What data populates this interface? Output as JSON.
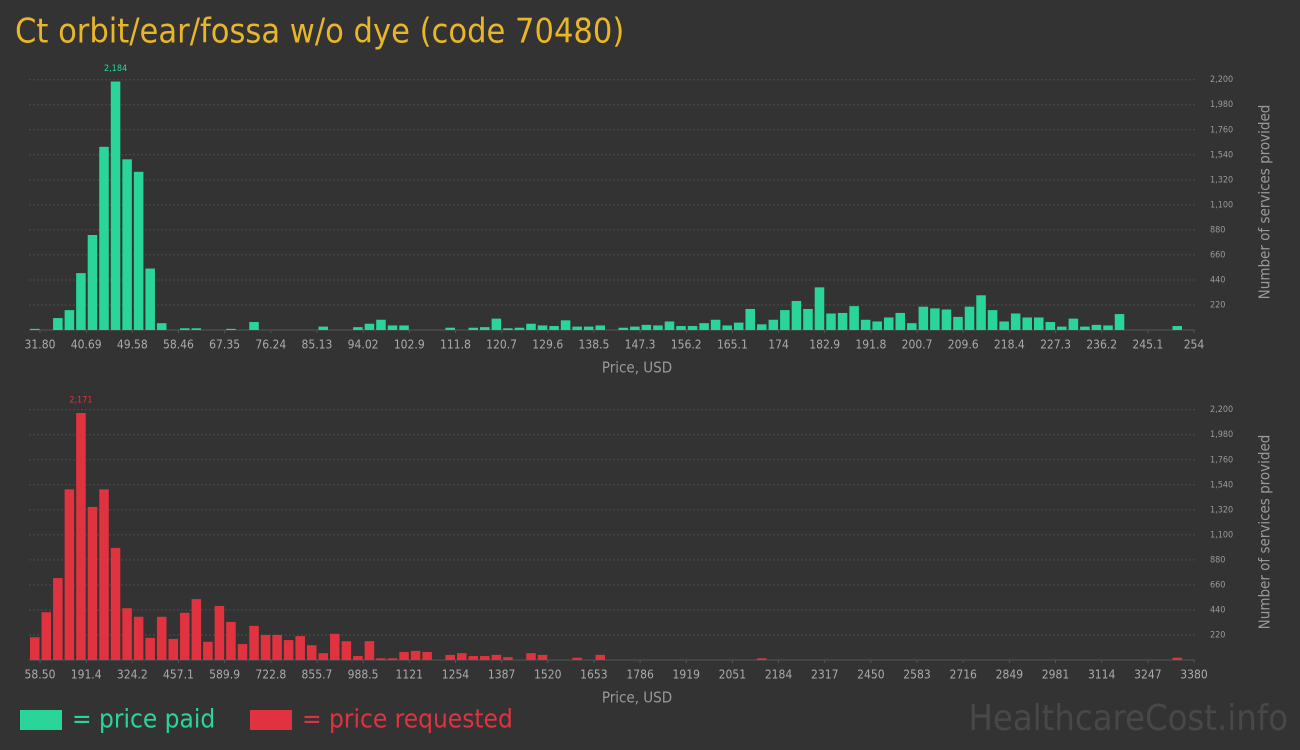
{
  "title": "Ct orbit/ear/fossa w/o dye (code 70480)",
  "watermark": "HealthcareCost.info",
  "legend": [
    {
      "label": "= price paid",
      "color": "#2ad59a"
    },
    {
      "label": "= price requested",
      "color": "#e0323f"
    }
  ],
  "chart_data": [
    {
      "type": "histogram",
      "color": "#2ad59a",
      "xlabel": "Price, USD",
      "ylabel": "Number of services provided",
      "grid": true,
      "ylim": [
        0,
        2250
      ],
      "yticks": [
        220,
        440,
        660,
        880,
        {
          "value": 1100,
          "label": "1,100"
        },
        {
          "value": 1320,
          "label": "1,320"
        },
        {
          "value": 1540,
          "label": "1,540"
        },
        {
          "value": 1760,
          "label": "1,760"
        },
        {
          "value": 1980,
          "label": "1,980"
        },
        {
          "value": 2200,
          "label": "2,200"
        }
      ],
      "bins": [
        31.8,
        34.022,
        36.244,
        38.466,
        40.688,
        42.91,
        45.132,
        47.354,
        49.576,
        51.798,
        54.02,
        56.242,
        58.464,
        60.686,
        62.908,
        65.13,
        67.352,
        69.574,
        71.796,
        74.018,
        76.24,
        78.462,
        80.684,
        82.906,
        85.128,
        87.35,
        89.572,
        91.794,
        94.016,
        96.238,
        98.46,
        100.682,
        102.904,
        105.126,
        107.348,
        109.57,
        111.792,
        114.014,
        116.236,
        118.458,
        120.68,
        122.902,
        125.124,
        127.346,
        129.568,
        131.79,
        134.012,
        136.234,
        138.456,
        140.678,
        142.9,
        145.122,
        147.344,
        149.566,
        151.788,
        154.01,
        156.232,
        158.454,
        160.676,
        162.898,
        165.12,
        167.342,
        169.564,
        171.786,
        174.008,
        176.23,
        178.452,
        180.674,
        182.896,
        185.118,
        187.34,
        189.562,
        191.784,
        194.006,
        196.228,
        198.45,
        200.672,
        202.894,
        205.116,
        207.338,
        209.56,
        211.782,
        214.004,
        216.226,
        218.448,
        220.67,
        222.892,
        225.114,
        227.336,
        229.558,
        231.78,
        234.002,
        236.224,
        238.446,
        240.668,
        242.89,
        245.112,
        247.334,
        249.556,
        251.778,
        254
      ],
      "counts": [
        10,
        0,
        105,
        175,
        500,
        835,
        1610,
        2184,
        1500,
        1390,
        540,
        60,
        0,
        15,
        15,
        0,
        0,
        10,
        0,
        70,
        0,
        0,
        0,
        0,
        0,
        30,
        0,
        0,
        25,
        55,
        90,
        40,
        40,
        0,
        0,
        0,
        20,
        0,
        20,
        25,
        100,
        15,
        20,
        55,
        40,
        35,
        85,
        30,
        30,
        40,
        0,
        20,
        30,
        45,
        40,
        75,
        35,
        35,
        60,
        90,
        40,
        65,
        185,
        50,
        90,
        175,
        255,
        185,
        375,
        145,
        150,
        210,
        90,
        75,
        110,
        150,
        60,
        205,
        190,
        180,
        115,
        205,
        305,
        175,
        75,
        145,
        110,
        110,
        70,
        30,
        100,
        30,
        45,
        40,
        140,
        0,
        0,
        0,
        0,
        35
      ],
      "value_labels": [
        null,
        null,
        null,
        null,
        null,
        null,
        null,
        "2,184",
        null,
        null,
        null,
        null,
        null,
        null,
        null,
        null,
        null,
        null,
        null,
        null,
        null,
        null,
        null,
        null,
        null,
        null,
        null,
        null,
        null,
        null,
        null,
        null,
        null,
        null,
        null,
        null,
        null,
        null,
        null,
        null,
        null,
        null,
        null,
        null,
        null,
        null,
        null,
        null,
        null,
        null,
        null,
        null,
        null,
        null,
        null,
        null,
        null,
        null,
        null,
        null,
        null,
        null,
        null,
        null,
        null,
        null,
        null,
        null,
        null,
        null,
        null,
        null,
        null,
        null,
        null,
        null,
        null,
        null,
        null,
        null,
        null,
        null,
        null,
        null,
        null,
        null,
        null,
        null,
        null,
        null,
        null,
        null,
        null,
        null,
        null,
        null,
        null,
        null,
        null,
        null
      ],
      "xticks": [
        {
          "value": 31.8,
          "label": "31.80"
        },
        {
          "value": 40.688,
          "label": "40.69"
        },
        {
          "value": 49.576,
          "label": "49.58"
        },
        {
          "value": 58.464,
          "label": "58.46"
        },
        {
          "value": 67.352,
          "label": "67.35"
        },
        {
          "value": 76.24,
          "label": "76.24"
        },
        {
          "value": 85.128,
          "label": "85.13"
        },
        {
          "value": 94.016,
          "label": "94.02"
        },
        {
          "value": 102.904,
          "label": "102.9"
        },
        {
          "value": 111.792,
          "label": "111.8"
        },
        {
          "value": 120.68,
          "label": "120.7"
        },
        {
          "value": 129.568,
          "label": "129.6"
        },
        {
          "value": 138.456,
          "label": "138.5"
        },
        {
          "value": 147.344,
          "label": "147.3"
        },
        {
          "value": 156.232,
          "label": "156.2"
        },
        {
          "value": 165.12,
          "label": "165.1"
        },
        {
          "value": 174.008,
          "label": "174"
        },
        {
          "value": 182.896,
          "label": "182.9"
        },
        {
          "value": 191.784,
          "label": "191.8"
        },
        {
          "value": 200.672,
          "label": "200.7"
        },
        {
          "value": 209.56,
          "label": "209.6"
        },
        {
          "value": 218.448,
          "label": "218.4"
        },
        {
          "value": 227.336,
          "label": "227.3"
        },
        {
          "value": 236.224,
          "label": "236.2"
        },
        {
          "value": 245.112,
          "label": "245.1"
        },
        {
          "value": 254,
          "label": "254"
        }
      ]
    },
    {
      "type": "histogram",
      "color": "#e0323f",
      "xlabel": "Price, USD",
      "ylabel": "Number of services provided",
      "grid": true,
      "ylim": [
        0,
        2250
      ],
      "yticks": [
        220,
        440,
        660,
        880,
        {
          "value": 1100,
          "label": "1,100"
        },
        {
          "value": 1320,
          "label": "1,320"
        },
        {
          "value": 1540,
          "label": "1,540"
        },
        {
          "value": 1760,
          "label": "1,760"
        },
        {
          "value": 1980,
          "label": "1,980"
        },
        {
          "value": 2200,
          "label": "2,200"
        }
      ],
      "bins": [
        58.5,
        91.715,
        124.93,
        158.145,
        191.36,
        224.575,
        257.79,
        291.005,
        324.22,
        357.435,
        390.65,
        423.865,
        457.08,
        490.295,
        523.51,
        556.725,
        589.94,
        623.155,
        656.37,
        689.585,
        722.8,
        756.015,
        789.23,
        822.445,
        855.66,
        888.875,
        922.09,
        955.305,
        988.52,
        1021.735,
        1054.95,
        1088.165,
        1121.38,
        1154.595,
        1187.81,
        1221.025,
        1254.24,
        1287.455,
        1320.67,
        1353.885,
        1387.1,
        1420.315,
        1453.53,
        1486.745,
        1519.96,
        1553.175,
        1586.39,
        1619.605,
        1652.82,
        1686.035,
        1719.25,
        1752.465,
        1785.68,
        1818.895,
        1852.11,
        1885.325,
        1918.54,
        1951.755,
        1984.97,
        2018.185,
        2051.4,
        2084.615,
        2117.83,
        2151.045,
        2184.26,
        2217.475,
        2250.69,
        2283.905,
        2317.12,
        2350.335,
        2383.55,
        2416.765,
        2449.98,
        2483.195,
        2516.41,
        2549.625,
        2582.84,
        2616.055,
        2649.27,
        2682.485,
        2715.7,
        2748.915,
        2782.13,
        2815.345,
        2848.56,
        2881.775,
        2914.99,
        2948.205,
        2981.42,
        3014.635,
        3047.85,
        3081.065,
        3114.28,
        3147.495,
        3180.71,
        3213.925,
        3247.14,
        3280.355,
        3313.57,
        3346.785,
        3380
      ],
      "counts": [
        200,
        420,
        720,
        1500,
        2171,
        1345,
        1500,
        985,
        455,
        380,
        195,
        380,
        185,
        415,
        535,
        160,
        475,
        335,
        140,
        300,
        220,
        220,
        175,
        210,
        130,
        60,
        230,
        165,
        35,
        165,
        15,
        15,
        70,
        80,
        70,
        0,
        45,
        60,
        35,
        35,
        45,
        25,
        0,
        60,
        45,
        0,
        0,
        20,
        0,
        45,
        0,
        0,
        0,
        0,
        0,
        0,
        0,
        0,
        0,
        0,
        0,
        0,
        0,
        15,
        0,
        0,
        0,
        0,
        0,
        0,
        0,
        0,
        0,
        0,
        0,
        0,
        0,
        0,
        0,
        0,
        0,
        0,
        0,
        0,
        0,
        0,
        0,
        0,
        0,
        0,
        0,
        0,
        0,
        0,
        0,
        0,
        0,
        0,
        0,
        20
      ],
      "value_labels": [
        null,
        null,
        null,
        null,
        "2,171",
        null,
        null,
        null,
        null,
        null,
        null,
        null,
        null,
        null,
        null,
        null,
        null,
        null,
        null,
        null,
        null,
        null,
        null,
        null,
        null,
        null,
        null,
        null,
        null,
        null,
        null,
        null,
        null,
        null,
        null,
        null,
        null,
        null,
        null,
        null,
        null,
        null,
        null,
        null,
        null,
        null,
        null,
        null,
        null,
        null,
        null,
        null,
        null,
        null,
        null,
        null,
        null,
        null,
        null,
        null,
        null,
        null,
        null,
        null,
        null,
        null,
        null,
        null,
        null,
        null,
        null,
        null,
        null,
        null,
        null,
        null,
        null,
        null,
        null,
        null,
        null,
        null,
        null,
        null,
        null,
        null,
        null,
        null,
        null,
        null,
        null,
        null,
        null,
        null,
        null,
        null,
        null,
        null,
        null,
        null
      ],
      "xticks": [
        {
          "value": 58.5,
          "label": "58.50"
        },
        {
          "value": 191.36,
          "label": "191.4"
        },
        {
          "value": 324.22,
          "label": "324.2"
        },
        {
          "value": 457.08,
          "label": "457.1"
        },
        {
          "value": 589.94,
          "label": "589.9"
        },
        {
          "value": 722.8,
          "label": "722.8"
        },
        {
          "value": 855.66,
          "label": "855.7"
        },
        {
          "value": 988.52,
          "label": "988.5"
        },
        {
          "value": 1121.38,
          "label": "1121"
        },
        {
          "value": 1254.24,
          "label": "1254"
        },
        {
          "value": 1387.1,
          "label": "1387"
        },
        {
          "value": 1519.96,
          "label": "1520"
        },
        {
          "value": 1652.82,
          "label": "1653"
        },
        {
          "value": 1785.68,
          "label": "1786"
        },
        {
          "value": 1918.54,
          "label": "1919"
        },
        {
          "value": 2051.4,
          "label": "2051"
        },
        {
          "value": 2184.26,
          "label": "2184"
        },
        {
          "value": 2317.12,
          "label": "2317"
        },
        {
          "value": 2449.98,
          "label": "2450"
        },
        {
          "value": 2582.84,
          "label": "2583"
        },
        {
          "value": 2715.7,
          "label": "2716"
        },
        {
          "value": 2848.56,
          "label": "2849"
        },
        {
          "value": 2981.42,
          "label": "2981"
        },
        {
          "value": 3114.28,
          "label": "3114"
        },
        {
          "value": 3247.14,
          "label": "3247"
        },
        {
          "value": 3380,
          "label": "3380"
        }
      ]
    }
  ]
}
